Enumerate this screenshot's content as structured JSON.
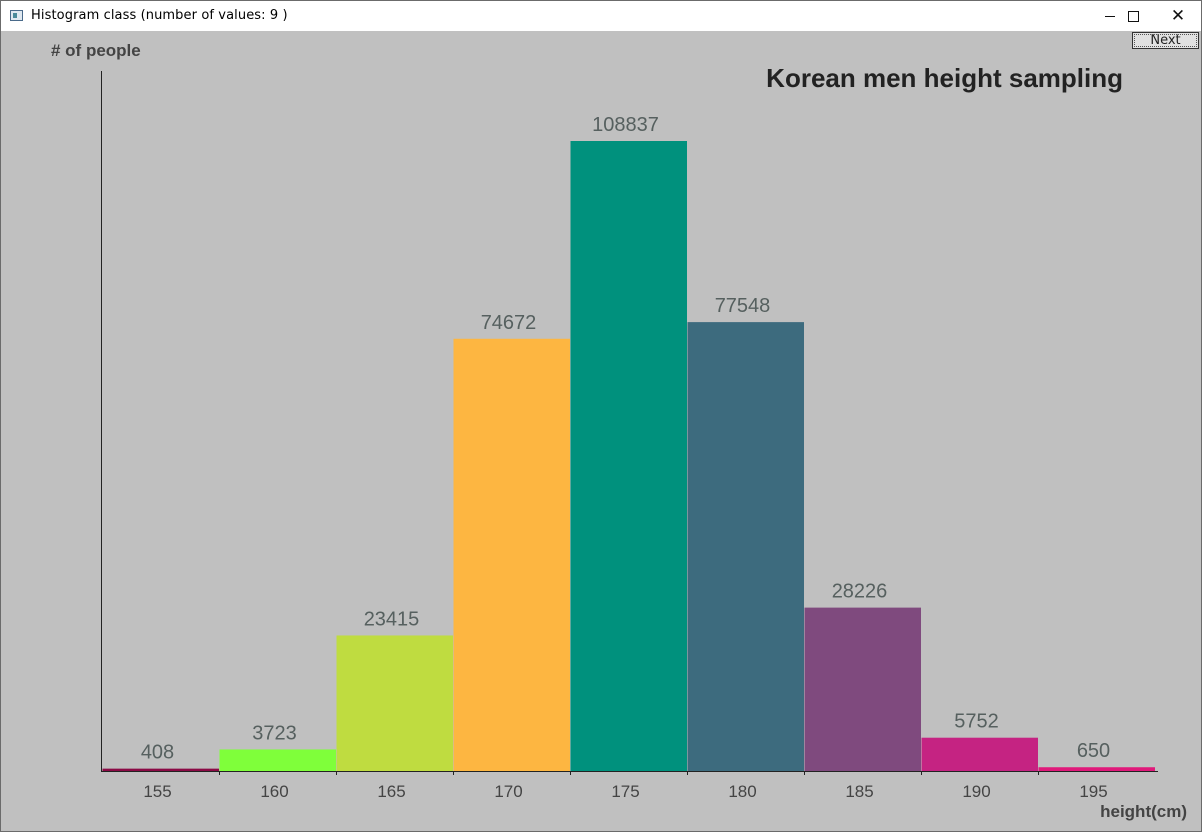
{
  "window": {
    "title": "Histogram class (number of values: 9 )",
    "next_button": "Next"
  },
  "chart_data": {
    "type": "bar",
    "title": "Korean men height sampling",
    "ylabel": "# of people",
    "xlabel": "height(cm)",
    "categories": [
      "155",
      "160",
      "165",
      "170",
      "175",
      "180",
      "185",
      "190",
      "195"
    ],
    "values": [
      408,
      3723,
      23415,
      74672,
      108837,
      77548,
      28226,
      5752,
      650
    ],
    "colors": [
      "#8b0a45",
      "#7fff3a",
      "#bfdc40",
      "#fdb641",
      "#00917d",
      "#3d6b7e",
      "#7f4a7e",
      "#c52382",
      "#e0197a"
    ],
    "ylim": [
      0,
      108837
    ],
    "grid": false,
    "legend": false
  }
}
